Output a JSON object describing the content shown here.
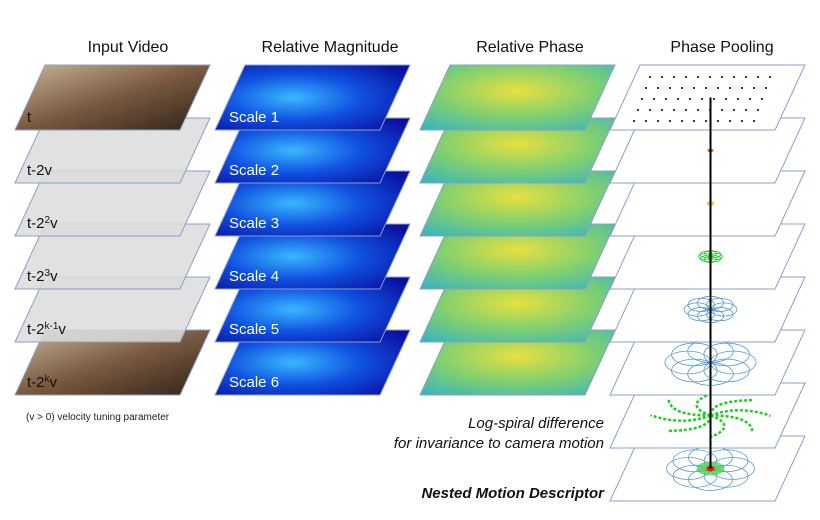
{
  "columns": [
    {
      "title": "Input Video",
      "frames": [
        {
          "parts": [
            "t"
          ]
        },
        {
          "parts": [
            "t-2",
            "v"
          ]
        },
        {
          "parts": [
            "t-2",
            "2",
            "v"
          ]
        },
        {
          "parts": [
            "t-2",
            "3",
            "v"
          ]
        },
        {
          "parts": [
            "t-2",
            "k-1",
            "v"
          ]
        },
        {
          "parts": [
            "t-2",
            "k",
            "v"
          ]
        }
      ]
    },
    {
      "title": "Relative Magnitude",
      "frames": [
        "Scale 1",
        "Scale 2",
        "Scale 3",
        "Scale 4",
        "Scale 5",
        "Scale 6"
      ]
    },
    {
      "title": "Relative Phase"
    },
    {
      "title": "Phase Pooling"
    }
  ],
  "note": "(v > 0) velocity tuning parameter",
  "annotation": [
    "Log-spiral difference",
    "for invariance to camera motion"
  ],
  "descriptor": "Nested Motion Descriptor"
}
